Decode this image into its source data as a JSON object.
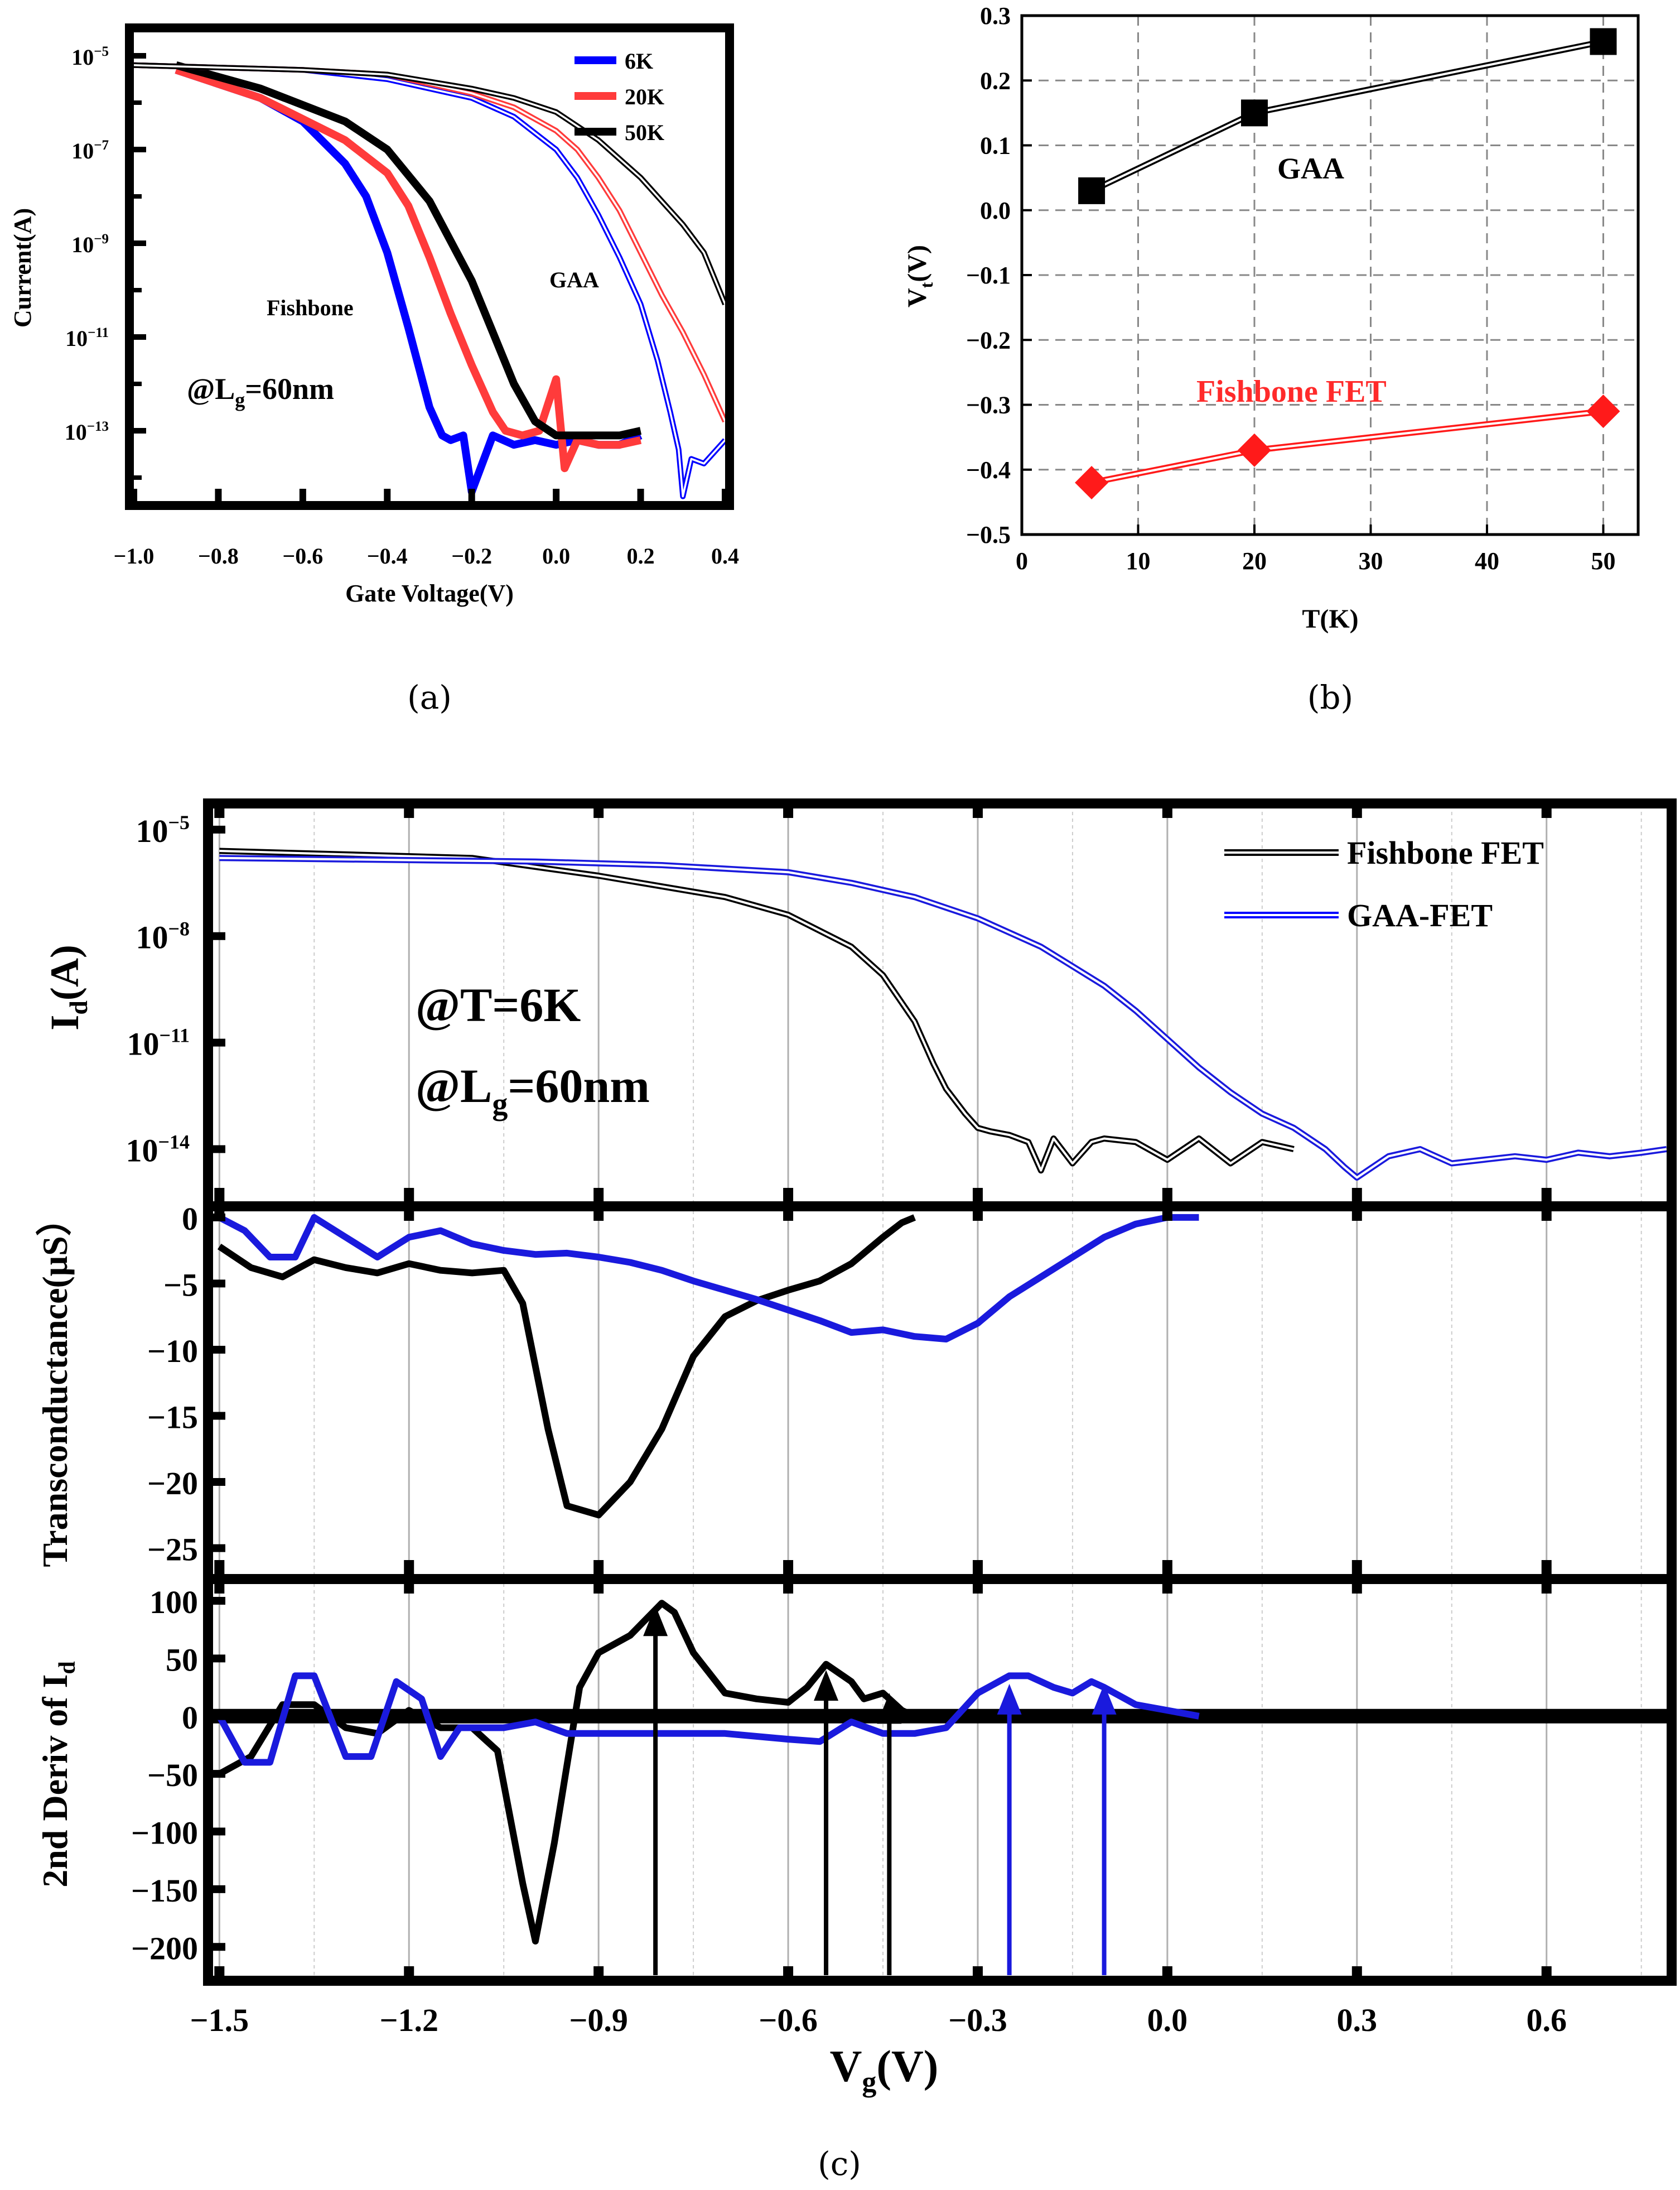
{
  "colors": {
    "blue": "#0000ff",
    "red": "#ff3b3b",
    "black": "#000000",
    "gaa_line": "#1a1adc",
    "fish_line": "#ee3030"
  },
  "chart_data": [
    {
      "id": "a",
      "type": "line",
      "caption": "(a)",
      "xlabel": "Gate Voltage(V)",
      "ylabel": "Current(A)",
      "xlim": [
        -1.0,
        0.4
      ],
      "ylim_log10": [
        -14.5,
        -4.5
      ],
      "yscale": "log",
      "xticks": [
        -1.0,
        -0.8,
        -0.6,
        -0.4,
        -0.2,
        0.0,
        0.2,
        0.4
      ],
      "xtick_labels": [
        "−1.0",
        "−0.8",
        "−0.6",
        "−0.4",
        "−0.2",
        "0.0",
        "0.2",
        "0.4"
      ],
      "yticks_exp": [
        -5,
        -7,
        -9,
        -11,
        -13
      ],
      "ytick_labels": [
        "10",
        "10",
        "10",
        "10",
        "10"
      ],
      "ytick_sup": [
        "−5",
        "−7",
        "−9",
        "−11",
        "−13"
      ],
      "legend": [
        "6K",
        "20K",
        "50K"
      ],
      "annotations": {
        "fishbone": "Fishbone",
        "gaa": "GAA",
        "lg_prefix": "@L",
        "lg_sub": "g",
        "lg_suffix": "=60nm"
      },
      "series": [
        {
          "name": "6K Fishbone",
          "style": "thick",
          "color": "blue",
          "x": [
            -0.9,
            -0.7,
            -0.6,
            -0.5,
            -0.45,
            -0.4,
            -0.35,
            -0.3,
            -0.27,
            -0.25,
            -0.22,
            -0.2,
            -0.15,
            -0.1,
            -0.05,
            0.0,
            0.05,
            0.1,
            0.15,
            0.2
          ],
          "log10": [
            -5.3,
            -5.9,
            -6.4,
            -7.3,
            -8.0,
            -9.2,
            -10.8,
            -12.5,
            -13.1,
            -13.2,
            -13.1,
            -14.3,
            -13.1,
            -13.3,
            -13.2,
            -13.3,
            -13.2,
            -13.3,
            -13.3,
            -13.1
          ]
        },
        {
          "name": "20K Fishbone",
          "style": "thick",
          "color": "red",
          "x": [
            -0.9,
            -0.7,
            -0.5,
            -0.4,
            -0.35,
            -0.3,
            -0.25,
            -0.2,
            -0.15,
            -0.12,
            -0.08,
            -0.04,
            0.0,
            0.02,
            0.05,
            0.1,
            0.15,
            0.2
          ],
          "log10": [
            -5.3,
            -5.9,
            -6.8,
            -7.5,
            -8.2,
            -9.3,
            -10.5,
            -11.6,
            -12.6,
            -13.0,
            -13.1,
            -13.0,
            -11.9,
            -13.8,
            -13.2,
            -13.3,
            -13.3,
            -13.2
          ]
        },
        {
          "name": "50K Fishbone",
          "style": "thick",
          "color": "black",
          "x": [
            -0.9,
            -0.7,
            -0.5,
            -0.4,
            -0.3,
            -0.2,
            -0.15,
            -0.1,
            -0.05,
            0.0,
            0.05,
            0.1,
            0.15,
            0.2
          ],
          "log10": [
            -5.2,
            -5.7,
            -6.4,
            -7.0,
            -8.1,
            -9.8,
            -10.9,
            -12.0,
            -12.8,
            -13.1,
            -13.1,
            -13.1,
            -13.1,
            -13.0
          ]
        },
        {
          "name": "6K GAA",
          "style": "double",
          "color": "blue",
          "x": [
            -1.0,
            -0.6,
            -0.4,
            -0.2,
            -0.1,
            0.0,
            0.05,
            0.1,
            0.15,
            0.2,
            0.24,
            0.27,
            0.29,
            0.3,
            0.32,
            0.35,
            0.4
          ],
          "log10": [
            -5.2,
            -5.3,
            -5.5,
            -5.9,
            -6.3,
            -7.0,
            -7.6,
            -8.4,
            -9.3,
            -10.3,
            -11.5,
            -12.6,
            -13.4,
            -14.4,
            -13.6,
            -13.7,
            -13.2
          ]
        },
        {
          "name": "20K GAA",
          "style": "double",
          "color": "red",
          "x": [
            -1.0,
            -0.6,
            -0.4,
            -0.2,
            -0.1,
            0.0,
            0.05,
            0.1,
            0.15,
            0.2,
            0.25,
            0.3,
            0.35,
            0.4
          ],
          "log10": [
            -5.2,
            -5.3,
            -5.4,
            -5.8,
            -6.1,
            -6.6,
            -7.0,
            -7.6,
            -8.3,
            -9.2,
            -10.1,
            -10.9,
            -11.8,
            -12.8
          ]
        },
        {
          "name": "50K GAA",
          "style": "double",
          "color": "black",
          "x": [
            -1.0,
            -0.6,
            -0.4,
            -0.2,
            -0.1,
            0.0,
            0.1,
            0.2,
            0.25,
            0.3,
            0.35,
            0.4
          ],
          "log10": [
            -5.2,
            -5.3,
            -5.4,
            -5.7,
            -5.9,
            -6.2,
            -6.8,
            -7.6,
            -8.1,
            -8.6,
            -9.2,
            -10.3
          ]
        }
      ]
    },
    {
      "id": "b",
      "type": "line",
      "caption": "(b)",
      "xlabel": "T(K)",
      "ylabel_main": "V",
      "ylabel_sub": "t",
      "ylabel_suffix": "(V)",
      "xlim": [
        0,
        53
      ],
      "ylim": [
        -0.5,
        0.3
      ],
      "xticks": [
        0,
        10,
        20,
        30,
        40,
        50
      ],
      "xtick_labels": [
        "0",
        "10",
        "20",
        "30",
        "40",
        "50"
      ],
      "yticks": [
        -0.5,
        -0.4,
        -0.3,
        -0.2,
        -0.1,
        0.0,
        0.1,
        0.2,
        0.3
      ],
      "ytick_labels": [
        "−0.5",
        "−0.4",
        "−0.3",
        "−0.2",
        "−0.1",
        "0.0",
        "0.1",
        "0.2",
        "0.3"
      ],
      "grid": true,
      "series": [
        {
          "name": "GAA",
          "marker": "square",
          "color": "black",
          "x": [
            6,
            20,
            50
          ],
          "y": [
            0.03,
            0.15,
            0.26
          ]
        },
        {
          "name": "Fishbone FET",
          "marker": "diamond",
          "color": "red",
          "x": [
            6,
            20,
            50
          ],
          "y": [
            -0.42,
            -0.37,
            -0.31
          ]
        }
      ]
    },
    {
      "id": "c",
      "type": "line",
      "caption": "(c)",
      "xlabel_main": "V",
      "xlabel_sub": "g",
      "xlabel_suffix": "(V)",
      "xlim": [
        -1.51,
        0.79
      ],
      "xticks": [
        -1.5,
        -1.2,
        -0.9,
        -0.6,
        -0.3,
        0.0,
        0.3,
        0.6
      ],
      "xtick_labels": [
        "−1.5",
        "−1.2",
        "−0.9",
        "−0.6",
        "−0.3",
        "0.0",
        "0.3",
        "0.6"
      ],
      "legend": [
        "Fishbone FET",
        "GAA-FET"
      ],
      "annotations": {
        "temp": "@T=6K",
        "lg_prefix": "@L",
        "lg_sub": "g",
        "lg_suffix": "=60nm"
      },
      "panels": {
        "id": {
          "ylabel_main": "I",
          "ylabel_sub": "d",
          "ylabel_suffix": "(A)",
          "yscale": "log",
          "ylim_log10": [
            -15.5,
            -4.5
          ],
          "yticks_exp": [
            -5,
            -8,
            -11,
            -14
          ],
          "ytick_labels": [
            "10",
            "10",
            "10",
            "10"
          ],
          "ytick_sup": [
            "−5",
            "−8",
            "−11",
            "−14"
          ],
          "series": [
            {
              "name": "Fishbone FET",
              "color": "black",
              "x": [
                -1.5,
                -1.1,
                -0.9,
                -0.7,
                -0.6,
                -0.5,
                -0.45,
                -0.4,
                -0.37,
                -0.35,
                -0.32,
                -0.3,
                -0.28,
                -0.25,
                -0.22,
                -0.2,
                -0.18,
                -0.15,
                -0.12,
                -0.1,
                -0.05,
                0.0,
                0.05,
                0.1,
                0.15,
                0.2
              ],
              "log10": [
                -5.6,
                -5.8,
                -6.3,
                -6.9,
                -7.4,
                -8.3,
                -9.1,
                -10.4,
                -11.6,
                -12.3,
                -13.0,
                -13.4,
                -13.5,
                -13.6,
                -13.8,
                -14.6,
                -13.7,
                -14.4,
                -13.8,
                -13.7,
                -13.8,
                -14.3,
                -13.7,
                -14.4,
                -13.8,
                -14.0
              ]
            },
            {
              "name": "GAA-FET",
              "color": "blue",
              "x": [
                -1.5,
                -1.0,
                -0.8,
                -0.6,
                -0.5,
                -0.4,
                -0.3,
                -0.2,
                -0.1,
                -0.05,
                0.0,
                0.05,
                0.1,
                0.15,
                0.2,
                0.25,
                0.28,
                0.3,
                0.35,
                0.4,
                0.45,
                0.5,
                0.55,
                0.6,
                0.65,
                0.7,
                0.75,
                0.79
              ],
              "log10": [
                -5.8,
                -5.9,
                -6.0,
                -6.2,
                -6.5,
                -6.9,
                -7.5,
                -8.3,
                -9.4,
                -10.1,
                -10.9,
                -11.7,
                -12.4,
                -13.0,
                -13.4,
                -14.0,
                -14.5,
                -14.8,
                -14.2,
                -14.0,
                -14.4,
                -14.3,
                -14.2,
                -14.3,
                -14.1,
                -14.2,
                -14.1,
                -14.0
              ]
            }
          ]
        },
        "gm": {
          "ylabel": "Transconductance(μS）",
          "ylim": [
            -27,
            0.5
          ],
          "yticks": [
            0,
            -5,
            -10,
            -15,
            -20,
            -25
          ],
          "ytick_labels": [
            "0",
            "−5",
            "−10",
            "−15",
            "−20",
            "−25"
          ],
          "series": [
            {
              "name": "Fishbone FET",
              "color": "black",
              "x": [
                -1.5,
                -1.45,
                -1.4,
                -1.35,
                -1.3,
                -1.25,
                -1.2,
                -1.15,
                -1.1,
                -1.05,
                -1.02,
                -0.98,
                -0.95,
                -0.9,
                -0.85,
                -0.8,
                -0.75,
                -0.7,
                -0.65,
                -0.6,
                -0.55,
                -0.5,
                -0.45,
                -0.42,
                -0.4
              ],
              "y": [
                -2.2,
                -3.8,
                -4.5,
                -3.2,
                -3.8,
                -4.2,
                -3.5,
                -4.0,
                -4.2,
                -4.0,
                -6.5,
                -16.0,
                -21.8,
                -22.5,
                -20.0,
                -16.0,
                -10.5,
                -7.5,
                -6.3,
                -5.5,
                -4.8,
                -3.5,
                -1.5,
                -0.4,
                0.0
              ]
            },
            {
              "name": "GAA-FET",
              "color": "blue",
              "x": [
                -1.5,
                -1.46,
                -1.42,
                -1.38,
                -1.35,
                -1.3,
                -1.25,
                -1.2,
                -1.15,
                -1.1,
                -1.05,
                -1.0,
                -0.95,
                -0.9,
                -0.85,
                -0.8,
                -0.75,
                -0.7,
                -0.65,
                -0.6,
                -0.55,
                -0.5,
                -0.45,
                -0.4,
                -0.35,
                -0.3,
                -0.25,
                -0.2,
                -0.15,
                -0.1,
                -0.05,
                0.0,
                0.05
              ],
              "y": [
                0.0,
                -1.0,
                -3.0,
                -3.0,
                0.0,
                -1.5,
                -3.0,
                -1.5,
                -1.0,
                -2.0,
                -2.5,
                -2.8,
                -2.7,
                -3.0,
                -3.4,
                -4.0,
                -4.8,
                -5.5,
                -6.2,
                -7.0,
                -7.8,
                -8.7,
                -8.5,
                -9.0,
                -9.2,
                -8.0,
                -6.0,
                -4.5,
                -3.0,
                -1.5,
                -0.5,
                0.0,
                0.0
              ]
            }
          ]
        },
        "d2": {
          "ylabel_prefix": "2nd Deriv of I",
          "ylabel_sub": "d",
          "ylim": [
            -225,
            115
          ],
          "yticks": [
            100,
            50,
            0,
            -50,
            -100,
            -150,
            -200
          ],
          "ytick_labels": [
            "100",
            "50",
            "0",
            "−50",
            "−100",
            "−150",
            "−200"
          ],
          "series": [
            {
              "name": "Fishbone FET",
              "color": "black",
              "x": [
                -1.5,
                -1.45,
                -1.4,
                -1.35,
                -1.3,
                -1.25,
                -1.2,
                -1.15,
                -1.1,
                -1.06,
                -1.02,
                -1.0,
                -0.97,
                -0.93,
                -0.9,
                -0.85,
                -0.8,
                -0.78,
                -0.75,
                -0.7,
                -0.65,
                -0.6,
                -0.57,
                -0.54,
                -0.5,
                -0.48,
                -0.45,
                -0.42,
                -0.4
              ],
              "y": [
                -50,
                -35,
                10,
                10,
                -10,
                -15,
                5,
                -10,
                -10,
                -30,
                -145,
                -195,
                -110,
                25,
                55,
                70,
                98,
                90,
                55,
                20,
                15,
                12,
                25,
                45,
                30,
                15,
                20,
                5,
                0
              ]
            },
            {
              "name": "GAA-FET",
              "color": "blue",
              "x": [
                -1.5,
                -1.46,
                -1.42,
                -1.38,
                -1.35,
                -1.3,
                -1.26,
                -1.22,
                -1.18,
                -1.15,
                -1.12,
                -1.08,
                -1.05,
                -1.0,
                -0.95,
                -0.9,
                -0.8,
                -0.7,
                -0.6,
                -0.55,
                -0.5,
                -0.45,
                -0.4,
                -0.35,
                -0.3,
                -0.25,
                -0.22,
                -0.18,
                -0.15,
                -0.12,
                -0.1,
                -0.05,
                0.0,
                0.05
              ],
              "y": [
                0,
                -40,
                -40,
                35,
                35,
                -35,
                -35,
                30,
                15,
                -35,
                -10,
                -10,
                -10,
                -5,
                -15,
                -15,
                -15,
                -15,
                -20,
                -22,
                -5,
                -15,
                -15,
                -10,
                20,
                35,
                35,
                25,
                20,
                30,
                25,
                10,
                5,
                0
              ]
            }
          ],
          "arrows": [
            {
              "x": -0.81,
              "color": "black"
            },
            {
              "x": -0.54,
              "color": "black"
            },
            {
              "x": -0.44,
              "color": "black"
            },
            {
              "x": -0.25,
              "color": "blue"
            },
            {
              "x": -0.1,
              "color": "blue"
            }
          ]
        }
      }
    }
  ]
}
